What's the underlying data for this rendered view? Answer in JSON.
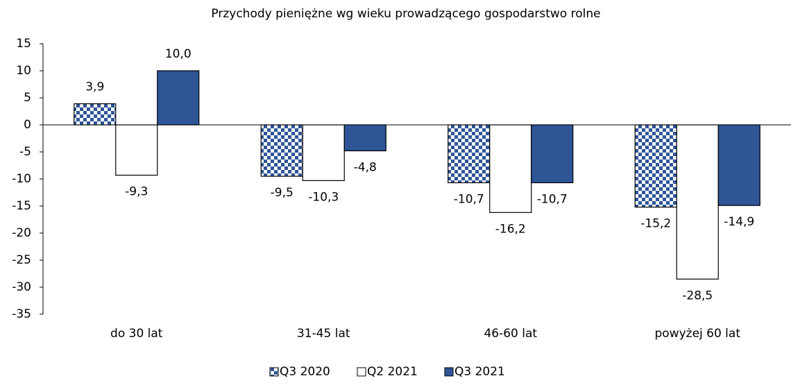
{
  "chart_data": {
    "type": "bar",
    "title": "Przychody pieniężne wg wieku prowadzącego gospodarstwo rolne",
    "categories": [
      "do 30 lat",
      "31-45 lat",
      "46-60 lat",
      "powyżej 60 lat"
    ],
    "series": [
      {
        "name": "Q3 2020",
        "color": "#2f5597",
        "pattern": "checker",
        "values": [
          3.9,
          -9.5,
          -10.7,
          -15.2
        ],
        "value_labels": [
          "3,9",
          "-9,5",
          "-10,7",
          "-15,2"
        ]
      },
      {
        "name": "Q2 2021",
        "color": "#ffffff",
        "values": [
          -9.3,
          -10.3,
          -16.2,
          -28.5
        ],
        "value_labels": [
          "-9,3",
          "-10,3",
          "-16,2",
          "-28,5"
        ]
      },
      {
        "name": "Q3 2021",
        "color": "#2f5597",
        "values": [
          10.0,
          -4.8,
          -10.7,
          -14.9
        ],
        "value_labels": [
          "10,0",
          "-4,8",
          "-10,7",
          "-14,9"
        ]
      }
    ],
    "ylim": [
      -35,
      15
    ],
    "yticks": [
      -35,
      -30,
      -25,
      -20,
      -15,
      -10,
      -5,
      0,
      5,
      10,
      15
    ],
    "legend": "bottom"
  }
}
